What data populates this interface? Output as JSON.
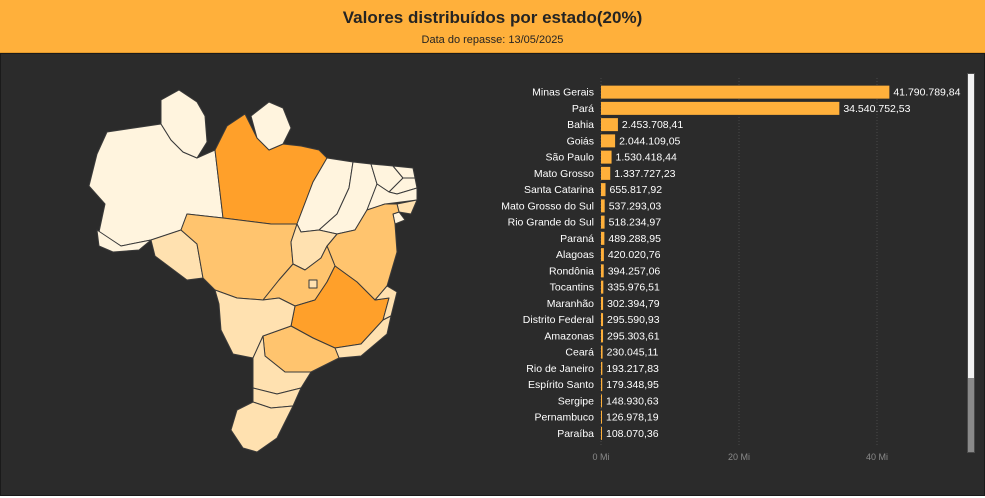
{
  "header": {
    "title": "Valores distribuídos por estado(20%)",
    "subtitle": "Data do repasse: 13/05/2025"
  },
  "colors": {
    "header_bg": "#FFB03B",
    "panel_bg": "#2B2B2B",
    "bar": "#FFB03B",
    "map_high": "#FFA02A",
    "map_mid": "#FFC46E",
    "map_low": "#FFE1B0",
    "map_lowest": "#FFF4DE"
  },
  "chart_data": {
    "type": "bar",
    "orientation": "horizontal",
    "categories": [
      "Minas Gerais",
      "Pará",
      "Bahia",
      "Goiás",
      "São Paulo",
      "Mato Grosso",
      "Santa Catarina",
      "Mato Grosso do Sul",
      "Rio Grande do Sul",
      "Paraná",
      "Alagoas",
      "Rondônia",
      "Tocantins",
      "Maranhão",
      "Distrito Federal",
      "Amazonas",
      "Ceará",
      "Rio de Janeiro",
      "Espírito Santo",
      "Sergipe",
      "Pernambuco",
      "Paraíba"
    ],
    "values": [
      41790789.84,
      34540752.53,
      2453708.41,
      2044109.05,
      1530418.44,
      1337727.23,
      655817.92,
      537293.03,
      518234.97,
      489288.95,
      420020.76,
      394257.06,
      335976.51,
      302394.79,
      295590.93,
      295303.61,
      230045.11,
      193217.83,
      179348.95,
      148930.63,
      126978.19,
      108070.36
    ],
    "data_labels": [
      "41.790.789,84",
      "34.540.752,53",
      "2.453.708,41",
      "2.044.109,05",
      "1.530.418,44",
      "1.337.727,23",
      "655.817,92",
      "537.293,03",
      "518.234,97",
      "489.288,95",
      "420.020,76",
      "394.257,06",
      "335.976,51",
      "302.394,79",
      "295.590,93",
      "295.303,61",
      "230.045,11",
      "193.217,83",
      "179.348,95",
      "148.930,63",
      "126.978,19",
      "108.070,36"
    ],
    "xlim": [
      0,
      50000000
    ],
    "x_ticks": [
      0,
      20000000,
      40000000
    ],
    "x_tick_labels": [
      "0 Mi",
      "20 Mi",
      "40 Mi"
    ],
    "grid": true
  },
  "map": {
    "states": [
      {
        "name": "amazonas-state",
        "level": "lowest"
      },
      {
        "name": "para-state",
        "level": "high"
      },
      {
        "name": "amapa-state",
        "level": "lowest"
      },
      {
        "name": "roraima-state",
        "level": "lowest"
      },
      {
        "name": "acre-state",
        "level": "lowest"
      },
      {
        "name": "rondonia-state",
        "level": "low"
      },
      {
        "name": "mato-grosso-state",
        "level": "mid"
      },
      {
        "name": "maranhao-state",
        "level": "lowest"
      },
      {
        "name": "piaui-state",
        "level": "lowest"
      },
      {
        "name": "ceara-state",
        "level": "lowest"
      },
      {
        "name": "rio-grande-do-norte-state",
        "level": "lowest"
      },
      {
        "name": "paraiba-state",
        "level": "lowest"
      },
      {
        "name": "pernambuco-state",
        "level": "lowest"
      },
      {
        "name": "alagoas-state",
        "level": "low"
      },
      {
        "name": "sergipe-state",
        "level": "lowest"
      },
      {
        "name": "bahia-state",
        "level": "mid"
      },
      {
        "name": "tocantins-state",
        "level": "low"
      },
      {
        "name": "goias-state",
        "level": "mid"
      },
      {
        "name": "distrito-federal-state",
        "level": "low"
      },
      {
        "name": "minas-gerais-state",
        "level": "high"
      },
      {
        "name": "espirito-santo-state",
        "level": "low"
      },
      {
        "name": "rio-de-janeiro-state",
        "level": "low"
      },
      {
        "name": "sao-paulo-state",
        "level": "mid"
      },
      {
        "name": "mato-grosso-do-sul-state",
        "level": "low"
      },
      {
        "name": "parana-state",
        "level": "low"
      },
      {
        "name": "santa-catarina-state",
        "level": "low"
      },
      {
        "name": "rio-grande-do-sul-state",
        "level": "low"
      }
    ]
  }
}
